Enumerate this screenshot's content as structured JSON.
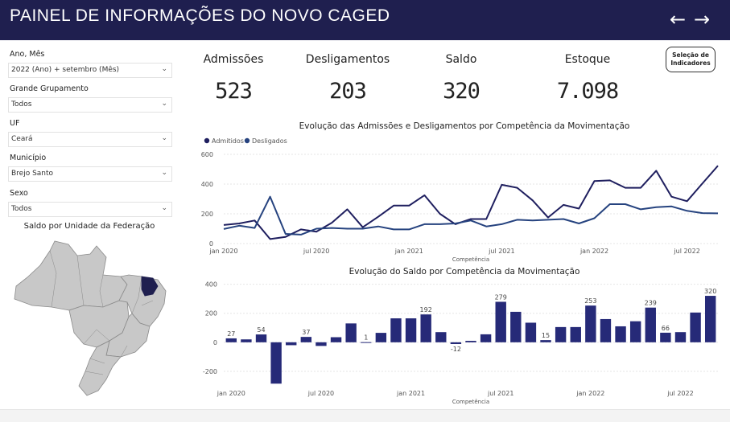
{
  "header": {
    "title": "PAINEL DE INFORMAÇÕES DO NOVO CAGED",
    "back_icon": "←",
    "forward_icon": "→"
  },
  "filters": [
    {
      "label": "Ano, Mês",
      "value": "2022 (Ano) + setembro (Mês)"
    },
    {
      "label": "Grande Grupamento",
      "value": "Todos"
    },
    {
      "label": "UF",
      "value": "Ceará"
    },
    {
      "label": "Município",
      "value": "Brejo Santo"
    },
    {
      "label": "Sexo",
      "value": "Todos"
    }
  ],
  "map": {
    "title": "Saldo por Unidade da Federação",
    "highlight_color": "#1f1f4f",
    "base_color": "#c8c8c8"
  },
  "kpis": [
    {
      "label": "Admissões",
      "value": "523"
    },
    {
      "label": "Desligamentos",
      "value": "203"
    },
    {
      "label": "Saldo",
      "value": "320"
    },
    {
      "label": "Estoque",
      "value": "7.098"
    }
  ],
  "selection_button": {
    "line1": "Seleção de",
    "line2": "Indicadores"
  },
  "chart_data": [
    {
      "type": "line",
      "title": "Evolução das Admissões e Desligamentos por Competência da Movimentação",
      "xlabel": "Competência",
      "ylabel": "",
      "ylim": [
        0,
        600
      ],
      "yticks": [
        0,
        200,
        400,
        600
      ],
      "xtick_labels": [
        "jan 2020",
        "jul 2020",
        "jan 2021",
        "jul 2021",
        "jan 2022",
        "jul 2022"
      ],
      "x_start": "2020-01",
      "legend_position": "top-left",
      "series": [
        {
          "name": "Admitidos",
          "color": "#1f1f5f",
          "values": [
            125,
            135,
            155,
            30,
            45,
            95,
            80,
            140,
            230,
            110,
            180,
            255,
            255,
            325,
            200,
            130,
            165,
            165,
            395,
            375,
            290,
            175,
            260,
            235,
            420,
            425,
            375,
            375,
            490,
            315,
            285,
            405,
            523
          ]
        },
        {
          "name": "Desligados",
          "color": "#26437f",
          "values": [
            98,
            120,
            105,
            315,
            65,
            60,
            100,
            105,
            100,
            100,
            115,
            95,
            95,
            130,
            130,
            135,
            155,
            115,
            130,
            160,
            155,
            160,
            165,
            135,
            170,
            265,
            265,
            230,
            245,
            250,
            220,
            205,
            203
          ]
        }
      ]
    },
    {
      "type": "bar",
      "title": "Evolução do Saldo por Competência da Movimentação",
      "xlabel": "Competência",
      "ylabel": "",
      "ylim": [
        -300,
        420
      ],
      "yticks": [
        -200,
        0,
        200,
        400
      ],
      "xtick_labels": [
        "jan 2020",
        "jul 2020",
        "jan 2021",
        "jul 2021",
        "jan 2022",
        "jul 2022"
      ],
      "x_start": "2020-01",
      "color": "#262a78",
      "values": [
        27,
        20,
        54,
        -285,
        -20,
        37,
        -25,
        35,
        130,
        1,
        65,
        165,
        165,
        192,
        70,
        -12,
        10,
        55,
        279,
        210,
        135,
        15,
        105,
        105,
        253,
        160,
        110,
        145,
        239,
        66,
        70,
        205,
        320
      ],
      "labeled": [
        {
          "index": 0,
          "text": "27"
        },
        {
          "index": 2,
          "text": "54"
        },
        {
          "index": 5,
          "text": "37"
        },
        {
          "index": 9,
          "text": "1"
        },
        {
          "index": 13,
          "text": "192"
        },
        {
          "index": 15,
          "text": "-12"
        },
        {
          "index": 18,
          "text": "279"
        },
        {
          "index": 21,
          "text": "15"
        },
        {
          "index": 24,
          "text": "253"
        },
        {
          "index": 28,
          "text": "239"
        },
        {
          "index": 29,
          "text": "66"
        },
        {
          "index": 32,
          "text": "320"
        }
      ]
    }
  ]
}
